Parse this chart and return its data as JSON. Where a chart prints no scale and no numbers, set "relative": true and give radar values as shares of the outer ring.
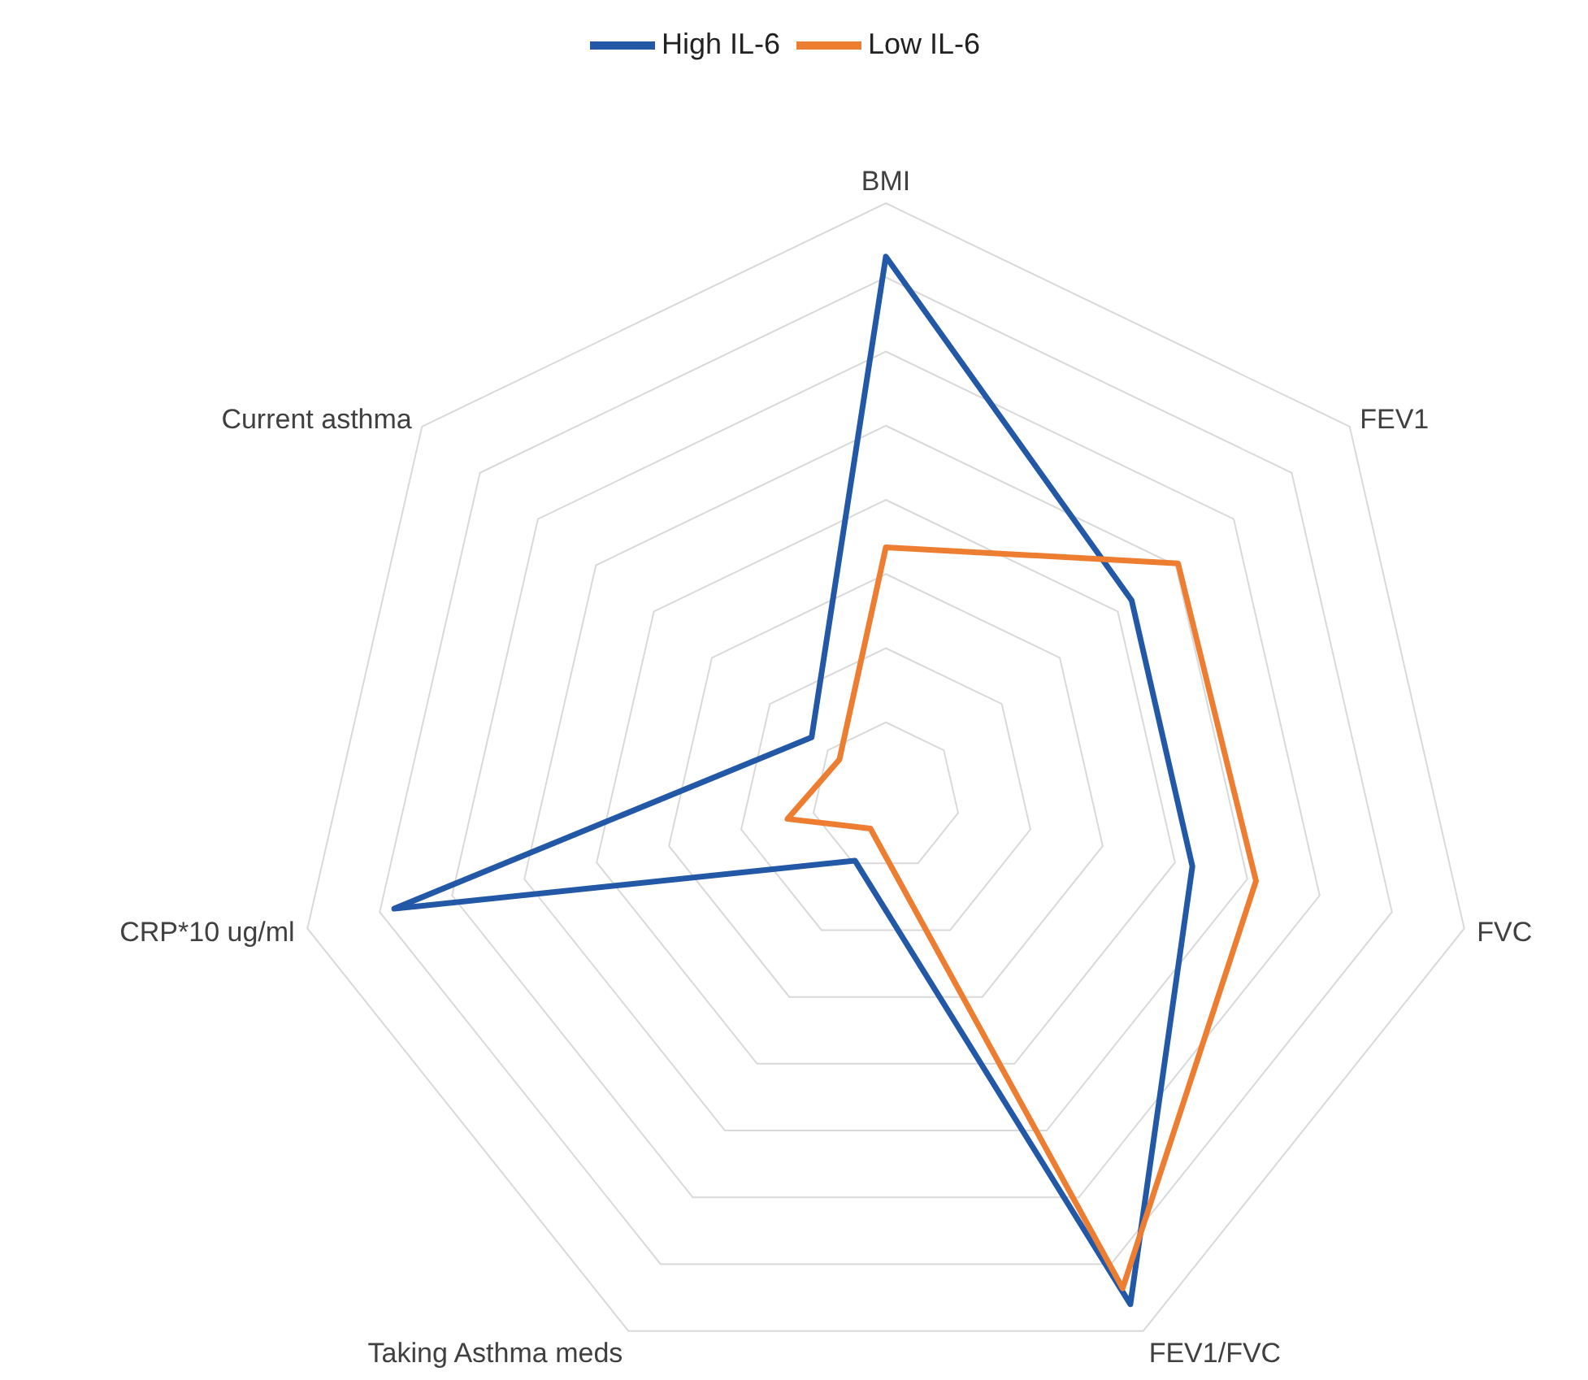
{
  "chart_data": {
    "type": "radar",
    "relative": true,
    "grid": true,
    "legend": "top",
    "marker": "none",
    "line_style": "solid",
    "categories": [
      "BMI",
      "FEV1",
      "FVC",
      "FEV1/FVC",
      "Taking Asthma meds",
      "CRP*10 ug/ml",
      "Current asthma"
    ],
    "series": [
      {
        "name": "High IL-6",
        "color": "#2258a5",
        "values": [
          0.91,
          0.53,
          0.53,
          0.95,
          0.12,
          0.85,
          0.16
        ]
      },
      {
        "name": "Low IL-6",
        "color": "#ed7d31",
        "values": [
          0.42,
          0.63,
          0.64,
          0.92,
          0.06,
          0.17,
          0.1
        ]
      }
    ]
  }
}
